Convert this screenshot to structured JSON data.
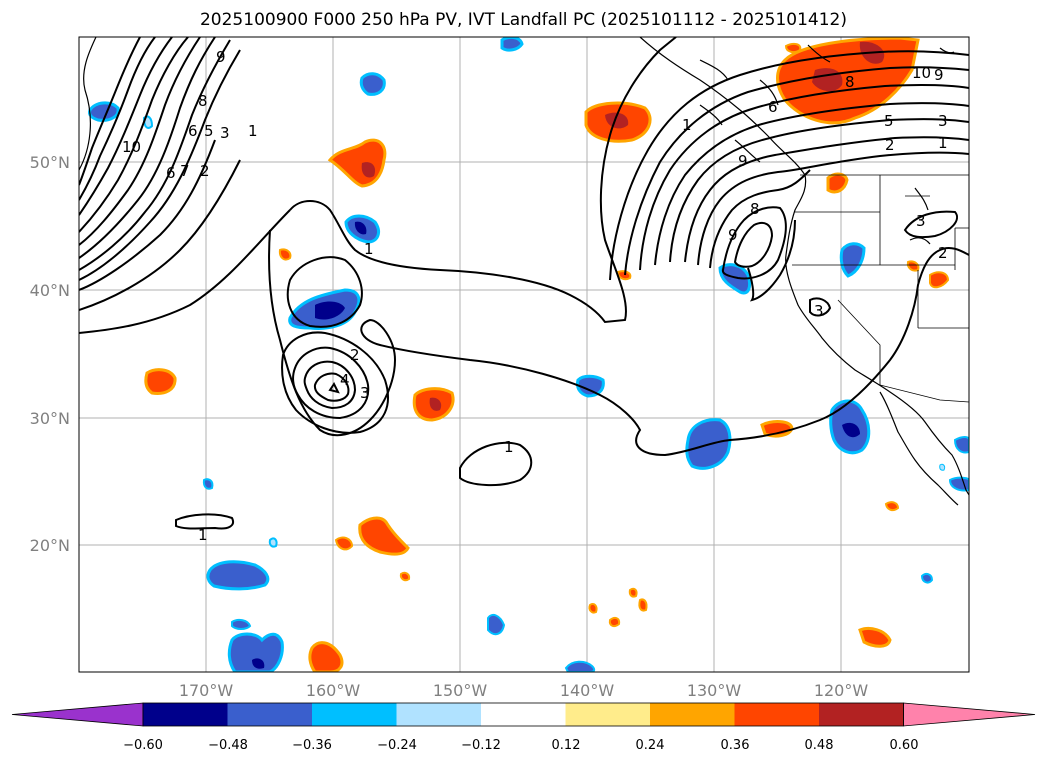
{
  "title": "2025100900 F000 250 hPa PV, IVT Landfall PC (2025101112 - 2025101412)",
  "axes": {
    "lat_labels": [
      "50°N",
      "40°N",
      "30°N",
      "20°N"
    ],
    "lon_labels": [
      "170°W",
      "160°W",
      "150°W",
      "140°W",
      "130°W",
      "120°W"
    ]
  },
  "colorbar": {
    "colors": [
      "#9a32cd",
      "#00008b",
      "#3a5fcd",
      "#00bfff",
      "#b0e2ff",
      "#ffffff",
      "#ffec8b",
      "#ffa500",
      "#ff4500",
      "#b22222",
      "#ff82ab"
    ],
    "tick_labels": [
      "−0.60",
      "−0.48",
      "−0.36",
      "−0.24",
      "−0.12",
      "0.12",
      "0.24",
      "0.36",
      "0.48",
      "0.60"
    ]
  },
  "contour_labels": [
    "9",
    "8",
    "6",
    "5",
    "3",
    "1",
    "10",
    "6",
    "7",
    "2",
    "1",
    "2",
    "4",
    "3",
    "1",
    "1",
    "1",
    "8",
    "6",
    "9",
    "5",
    "3",
    "2",
    "1",
    "10",
    "9",
    "8",
    "9",
    "3",
    "3",
    "2"
  ]
}
